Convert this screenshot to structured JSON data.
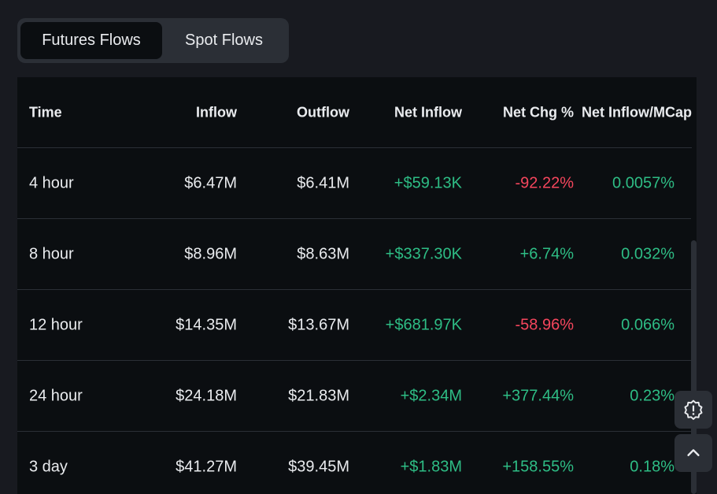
{
  "tabs": [
    {
      "label": "Futures Flows",
      "active": true
    },
    {
      "label": "Spot Flows",
      "active": false
    }
  ],
  "table": {
    "columns": [
      "Time",
      "Inflow",
      "Outflow",
      "Net Inflow",
      "Net Chg %",
      "Net Inflow/MCap"
    ],
    "rows": [
      {
        "time": "4 hour",
        "inflow": "$6.47M",
        "outflow": "$6.41M",
        "net_inflow": "+$59.13K",
        "net_chg": "-92.22%",
        "net_mcap": "0.0057%"
      },
      {
        "time": "8 hour",
        "inflow": "$8.96M",
        "outflow": "$8.63M",
        "net_inflow": "+$337.30K",
        "net_chg": "+6.74%",
        "net_mcap": "0.032%"
      },
      {
        "time": "12 hour",
        "inflow": "$14.35M",
        "outflow": "$13.67M",
        "net_inflow": "+$681.97K",
        "net_chg": "-58.96%",
        "net_mcap": "0.066%"
      },
      {
        "time": "24 hour",
        "inflow": "$24.18M",
        "outflow": "$21.83M",
        "net_inflow": "+$2.34M",
        "net_chg": "+377.44%",
        "net_mcap": "0.23%"
      },
      {
        "time": "3 day",
        "inflow": "$41.27M",
        "outflow": "$39.45M",
        "net_inflow": "+$1.83M",
        "net_chg": "+158.55%",
        "net_mcap": "0.18%"
      }
    ]
  },
  "icons": {
    "feedback": "alert-badge-icon",
    "scroll_top": "chevron-up-icon"
  },
  "colors": {
    "positive": "#2ebd85",
    "negative": "#f6465d",
    "background": "#181a20",
    "panel": "#0b0e11"
  }
}
